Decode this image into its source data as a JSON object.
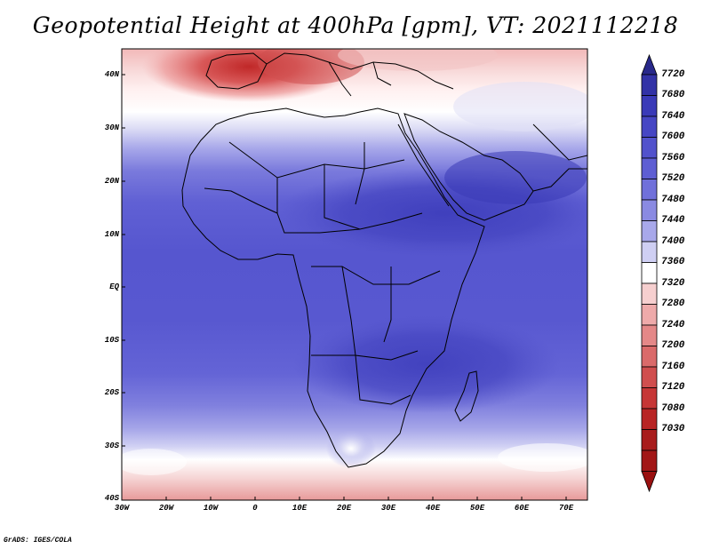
{
  "title": "Geopotential Height at 400hPa [gpm], VT: 2021112218",
  "credit": "GrADS: IGES/COLA",
  "map": {
    "variable": "Geopotential Height",
    "level": "400hPa",
    "units": "gpm",
    "valid_time": "2021112218",
    "lat_labels": [
      "40N",
      "30N",
      "20N",
      "10N",
      "EQ",
      "10S",
      "20S",
      "30S",
      "40S"
    ],
    "lon_labels": [
      "30W",
      "20W",
      "10W",
      "0",
      "10E",
      "20E",
      "30E",
      "40E",
      "50E",
      "60E",
      "70E"
    ]
  },
  "colorbar": {
    "labels": [
      "7720",
      "7680",
      "7640",
      "7600",
      "7560",
      "7520",
      "7480",
      "7440",
      "7400",
      "7360",
      "7320",
      "7280",
      "7240",
      "7200",
      "7160",
      "7120",
      "7080",
      "7030"
    ],
    "colors": [
      "#28288a",
      "#3232a6",
      "#3a3ab8",
      "#4646c4",
      "#5252cc",
      "#5e5ed3",
      "#7070da",
      "#8a8ae2",
      "#a8a8ea",
      "#cfcff3",
      "#ffffff",
      "#f6cfcf",
      "#eeaaaa",
      "#e48888",
      "#da6a6a",
      "#d04e4e",
      "#c63636",
      "#b82424",
      "#a21616"
    ]
  }
}
